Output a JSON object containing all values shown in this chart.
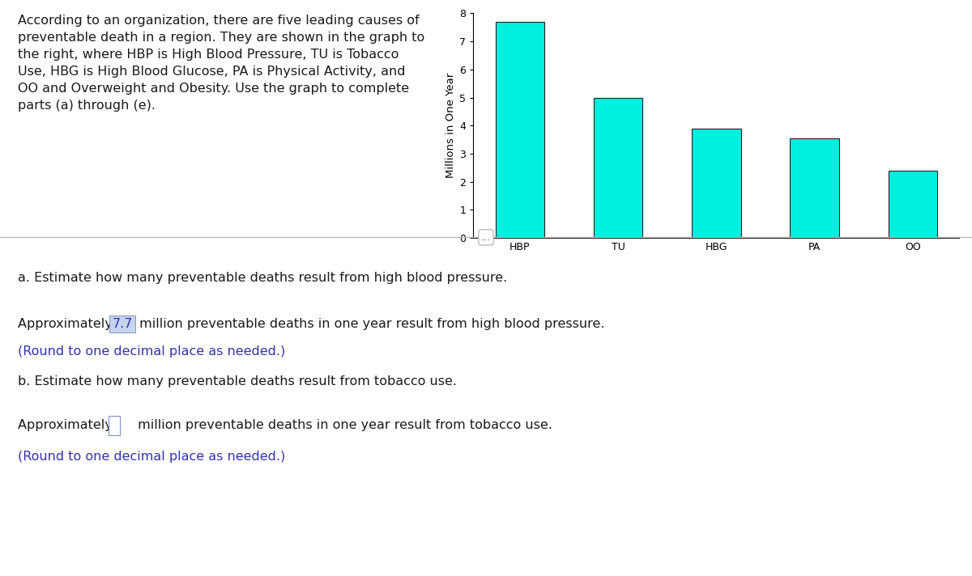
{
  "categories": [
    "HBP",
    "TU",
    "HBG",
    "PA",
    "OO"
  ],
  "values": [
    7.7,
    5.0,
    3.9,
    3.55,
    2.4
  ],
  "bar_color": "#00EFDF",
  "bar_edge_color": "#222222",
  "bar_edge_width": 0.8,
  "ylabel": "Millions in One Year",
  "ylim": [
    0,
    8
  ],
  "yticks": [
    0,
    1,
    2,
    3,
    4,
    5,
    6,
    7,
    8
  ],
  "background_color": "#ffffff",
  "intro_text": "According to an organization, there are five leading causes of\npreventable death in a region. They are shown in the graph to\nthe right, where HBP is High Blood Pressure, TU is Tobacco\nUse, HBG is High Blood Glucose, PA is Physical Activity, and\nOO and Overweight and Obesity. Use the graph to complete\nparts (a) through (e).",
  "divider_text": "...",
  "question_a": "a. Estimate how many preventable deaths result from high blood pressure.",
  "answer_a_pre": "Approximately ",
  "answer_a_value": "7.7",
  "answer_a_post": " million preventable deaths in one year result from high blood pressure.",
  "answer_a_note": "(Round to one decimal place as needed.)",
  "question_b": "b. Estimate how many preventable deaths result from tobacco use.",
  "answer_b_pre": "Approximately ",
  "answer_b_post": " million preventable deaths in one year result from tobacco use.",
  "answer_b_note": "(Round to one decimal place as needed.)",
  "text_color": "#1a1a1a",
  "blue_text_color": "#3333aa",
  "highlight_bg_color": "#c5d5ed",
  "highlight_text_color": "#3333aa",
  "highlight_border_color": "#7788bb",
  "empty_box_border_color": "#7788bb",
  "divider_color": "#bbbbbb",
  "font_size": 11.5
}
